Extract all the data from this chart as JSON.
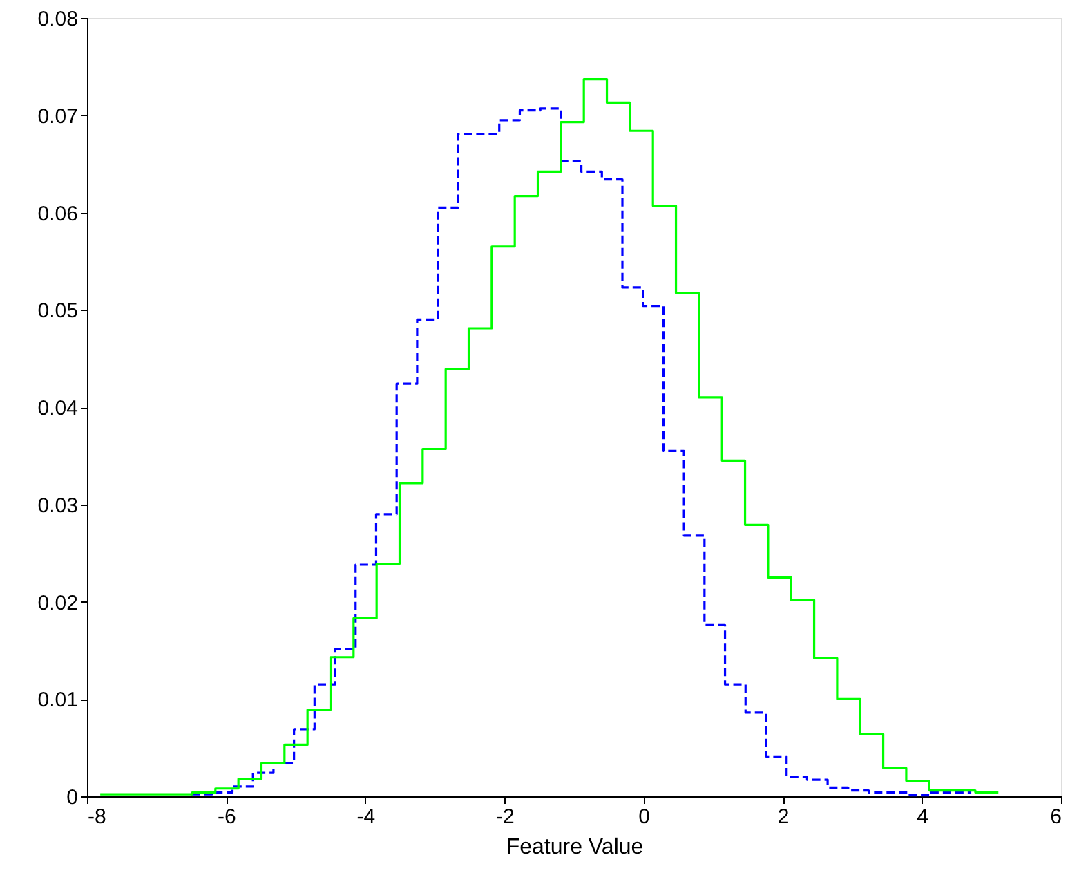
{
  "chart_data": {
    "type": "step",
    "xlabel": "Feature Value",
    "xlim": [
      -8,
      6
    ],
    "xticks": [
      -8,
      -6,
      -4,
      -2,
      0,
      2,
      4,
      6
    ],
    "ylim": [
      0,
      0.08
    ],
    "yticks": [
      0,
      0.01,
      0.02,
      0.03,
      0.04,
      0.05,
      0.06,
      0.07,
      0.08
    ],
    "grid": false,
    "series": [
      {
        "color": "#0000ff",
        "line_style": "dashed",
        "x": [
          -6.5,
          -6.205,
          -5.91,
          -5.615,
          -5.32,
          -5.025,
          -4.73,
          -4.435,
          -4.14,
          -3.845,
          -3.55,
          -3.255,
          -2.96,
          -2.665,
          -2.37,
          -2.075,
          -1.78,
          -1.485,
          -1.19,
          -0.895,
          -0.6,
          -0.305,
          -0.01,
          0.285,
          0.58,
          0.875,
          1.17,
          1.465,
          1.76,
          2.055,
          2.35,
          2.645,
          2.94,
          3.235,
          3.53,
          3.825,
          4.12,
          4.415,
          4.71
        ],
        "values": [
          0.0002,
          0.0004,
          0.001,
          0.0024,
          0.0034,
          0.0069,
          0.0115,
          0.0151,
          0.0238,
          0.029,
          0.0424,
          0.049,
          0.0605,
          0.0681,
          0.0681,
          0.0695,
          0.0705,
          0.0707,
          0.0653,
          0.0642,
          0.0634,
          0.0523,
          0.0504,
          0.0355,
          0.0268,
          0.0176,
          0.0115,
          0.0086,
          0.0041,
          0.002,
          0.0017,
          0.0009,
          0.0006,
          0.0004,
          0.0004,
          0.0001,
          0.0004,
          0.0004,
          0.0004
        ]
      },
      {
        "color": "#00ff00",
        "line_style": "solid",
        "x": [
          -7.81,
          -7.479,
          -7.148,
          -6.817,
          -6.486,
          -6.155,
          -5.824,
          -5.493,
          -5.162,
          -4.831,
          -4.5,
          -4.169,
          -3.838,
          -3.507,
          -3.176,
          -2.845,
          -2.514,
          -2.183,
          -1.852,
          -1.521,
          -1.19,
          -0.859,
          -0.528,
          -0.197,
          0.134,
          0.465,
          0.796,
          1.127,
          1.458,
          1.789,
          2.12,
          2.451,
          2.782,
          3.113,
          3.444,
          3.775,
          4.106,
          4.437,
          4.768,
          5.099
        ],
        "values": [
          0.0002,
          0.0002,
          0.0002,
          0.0002,
          0.0004,
          0.0008,
          0.0018,
          0.0034,
          0.0053,
          0.0089,
          0.0143,
          0.0183,
          0.0239,
          0.0322,
          0.0357,
          0.0439,
          0.0481,
          0.0565,
          0.0617,
          0.0642,
          0.0693,
          0.0737,
          0.0713,
          0.0684,
          0.0607,
          0.0517,
          0.041,
          0.0345,
          0.0279,
          0.0225,
          0.0202,
          0.0142,
          0.01,
          0.0064,
          0.0029,
          0.0016,
          0.0006,
          0.0006,
          0.0004,
          0.0004
        ]
      }
    ]
  }
}
